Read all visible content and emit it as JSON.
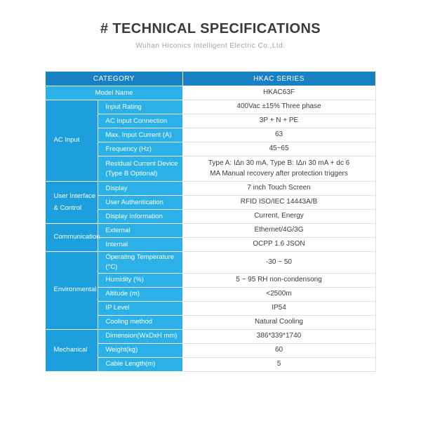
{
  "page": {
    "title": "# TECHNICAL SPECIFICATIONS",
    "subtitle": "Wuhan Hiconics Intelligent Electric Co.,Ltd."
  },
  "colors": {
    "header_blue": "#1a80c4",
    "category_blue": "#1c9fdc",
    "parameter_blue": "#2bb1e8",
    "value_text": "#3c3c3c"
  },
  "table": {
    "header": {
      "category": "CATEGORY",
      "series": "HKAC SERIES"
    },
    "model": {
      "label": "Model Name",
      "value": "HKAC63F"
    },
    "groups": [
      {
        "category": "AC Input",
        "rows": [
          {
            "label": "Input Rating",
            "value": "400Vac ±15% Three phase"
          },
          {
            "label": "AC Input Connection",
            "value": "3P + N + PE"
          },
          {
            "label": "Max. Input Current (A)",
            "value": "63"
          },
          {
            "label": "Frequency (Hz)",
            "value": "45~65"
          },
          {
            "label": "Residual Current Device\n(Type B Optional)",
            "value": "Type A: IΔn 30 mA, Type B: IΔn 30 mA + dc 6\nMA Manual recovery after protection triggers"
          }
        ]
      },
      {
        "category": "User Interface\n& Control",
        "rows": [
          {
            "label": "Display",
            "value": "7 inch Touch Screen"
          },
          {
            "label": "User Authentication",
            "value": "RFID  ISO/IEC 14443A/B"
          },
          {
            "label": "Display Information",
            "value": "Current, Energy"
          }
        ]
      },
      {
        "category": "Communication",
        "rows": [
          {
            "label": "External",
            "value": "Ethernet/4G/3G"
          },
          {
            "label": "Internal",
            "value": "OCPP 1.6 JSON"
          }
        ]
      },
      {
        "category": "Environmental",
        "rows": [
          {
            "label": "Operating Temperature (°C)",
            "value": "-30 ~ 50"
          },
          {
            "label": "Humidity (%)",
            "value": "5 ~ 95 RH non-condensong"
          },
          {
            "label": "Altitude (m)",
            "value": "<2500m"
          },
          {
            "label": "IP Level",
            "value": "IP54"
          },
          {
            "label": "Cooling method",
            "value": "Natural Cooling"
          }
        ]
      },
      {
        "category": "Mechanical",
        "rows": [
          {
            "label": "Dimension(WxDxH mm)",
            "value": "386*339*1740"
          },
          {
            "label": "Weight(kg)",
            "value": "60"
          },
          {
            "label": "Cable Length(m)",
            "value": "5"
          }
        ]
      }
    ]
  }
}
